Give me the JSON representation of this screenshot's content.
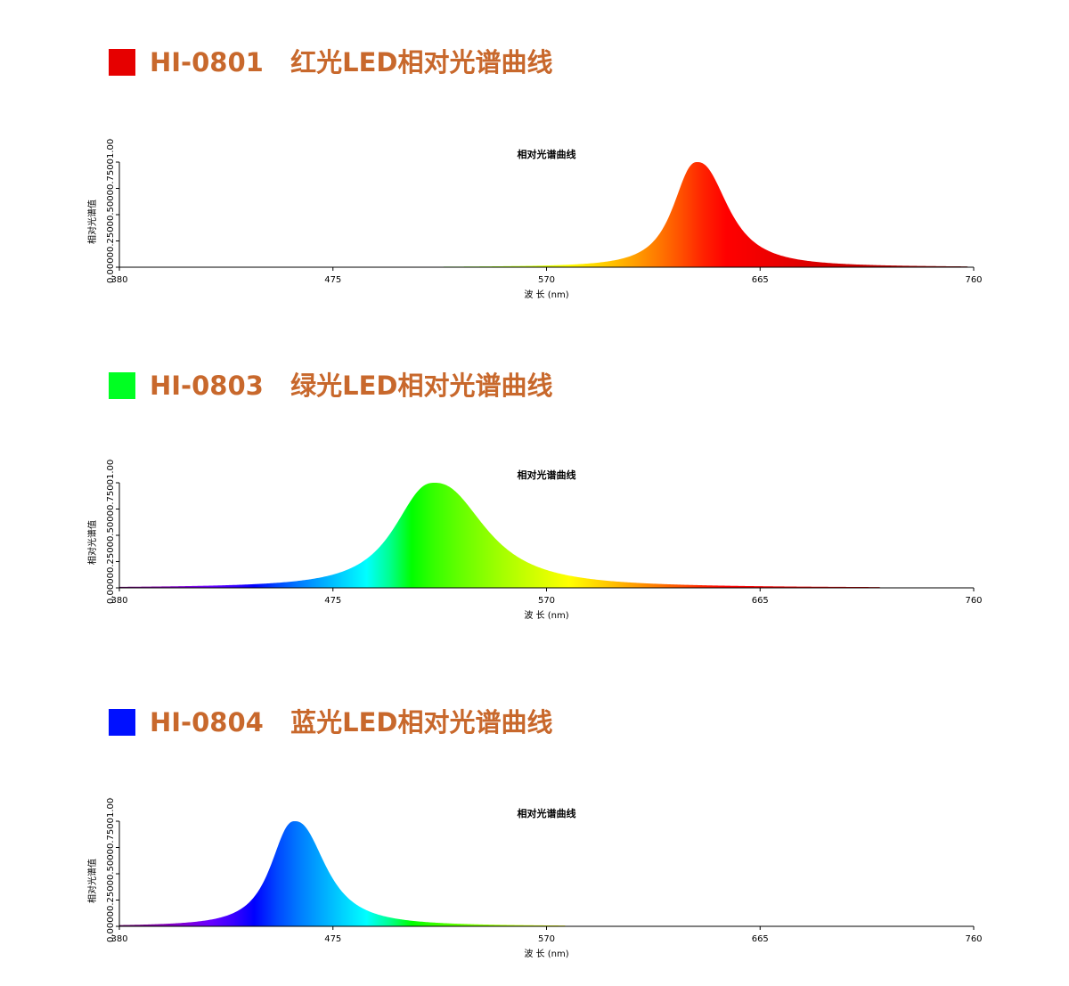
{
  "sections": [
    {
      "heading": "HI-0801   红光LED相对光谱曲线",
      "swatch_color": "#e60000",
      "chart_data": {
        "type": "area",
        "title": "相对光谱曲线",
        "xlabel": "波 长 (nm)",
        "ylabel": "相对光谱值",
        "xlim": [
          380,
          760
        ],
        "ylim": [
          0,
          1
        ],
        "xticks": [
          "380",
          "475",
          "570",
          "665",
          "760"
        ],
        "yticks": [
          "0.0000",
          "0.2500",
          "0.5000",
          "0.7500",
          "1.0000000"
        ],
        "peak_nm": 637,
        "peak_value": 1.0,
        "fwhm_nm": 20
      }
    },
    {
      "heading": "HI-0803   绿光LED相对光谱曲线",
      "swatch_color": "#00ff22",
      "chart_data": {
        "type": "area",
        "title": "相对光谱曲线",
        "xlabel": "波 长 (nm)",
        "ylabel": "相对光谱值",
        "xlim": [
          380,
          760
        ],
        "ylim": [
          0,
          1
        ],
        "xticks": [
          "380",
          "475",
          "570",
          "665",
          "760"
        ],
        "yticks": [
          "0.0000",
          "0.2500",
          "0.5000",
          "0.7500",
          "1.0000000"
        ],
        "peak_nm": 520,
        "peak_value": 1.0,
        "fwhm_nm": 33
      }
    },
    {
      "heading": "HI-0804   蓝光LED相对光谱曲线",
      "swatch_color": "#0010ff",
      "chart_data": {
        "type": "area",
        "title": "相对光谱曲线",
        "xlabel": "波 长 (nm)",
        "ylabel": "相对光谱值",
        "xlim": [
          380,
          760
        ],
        "ylim": [
          0,
          1
        ],
        "xticks": [
          "380",
          "475",
          "570",
          "665",
          "760"
        ],
        "yticks": [
          "0.0000",
          "0.2500",
          "0.5000",
          "0.7500",
          "1.0000000"
        ],
        "peak_nm": 458,
        "peak_value": 1.0,
        "fwhm_nm": 20
      }
    }
  ]
}
